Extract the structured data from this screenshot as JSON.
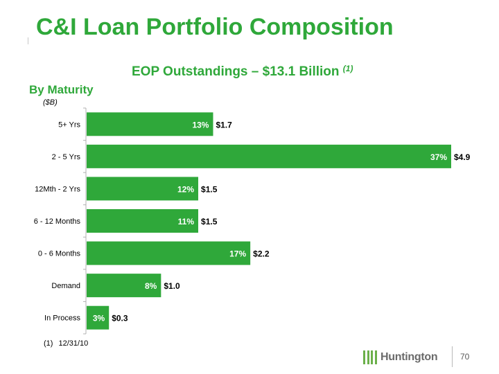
{
  "title": "C&I Loan Portfolio Composition",
  "subtitle": "EOP Outstandings – $13.1 Billion",
  "subtitle_footnote_ref": "(1)",
  "section_label": "By Maturity",
  "unit_label": "($B)",
  "footnote": {
    "marker": "(1)",
    "text": "12/31/10"
  },
  "page_number": "70",
  "logo": {
    "name": "Huntington",
    "icon": "huntington-logo-icon"
  },
  "colors": {
    "title": "#2fa83a",
    "bar": "#2fa83a",
    "bar_label": "#ffffff",
    "value_label": "#000000",
    "axis": "#b0b0b0"
  },
  "chart_data": {
    "type": "bar",
    "orientation": "horizontal",
    "title": "EOP Outstandings – $13.1 Billion",
    "ylabel": "($B)",
    "xlim": [
      0,
      4.9
    ],
    "categories": [
      "5+ Yrs",
      "2 - 5 Yrs",
      "12Mth - 2 Yrs",
      "6 - 12 Months",
      "0 - 6 Months",
      "Demand",
      "In Process"
    ],
    "values": [
      1.7,
      4.9,
      1.5,
      1.5,
      2.2,
      1.0,
      0.3
    ],
    "value_labels": [
      "$1.7",
      "$4.9",
      "$1.5",
      "$1.5",
      "$2.2",
      "$1.0",
      "$0.3"
    ],
    "percent_labels": [
      "13%",
      "37%",
      "12%",
      "11%",
      "17%",
      "8%",
      "3%"
    ]
  }
}
